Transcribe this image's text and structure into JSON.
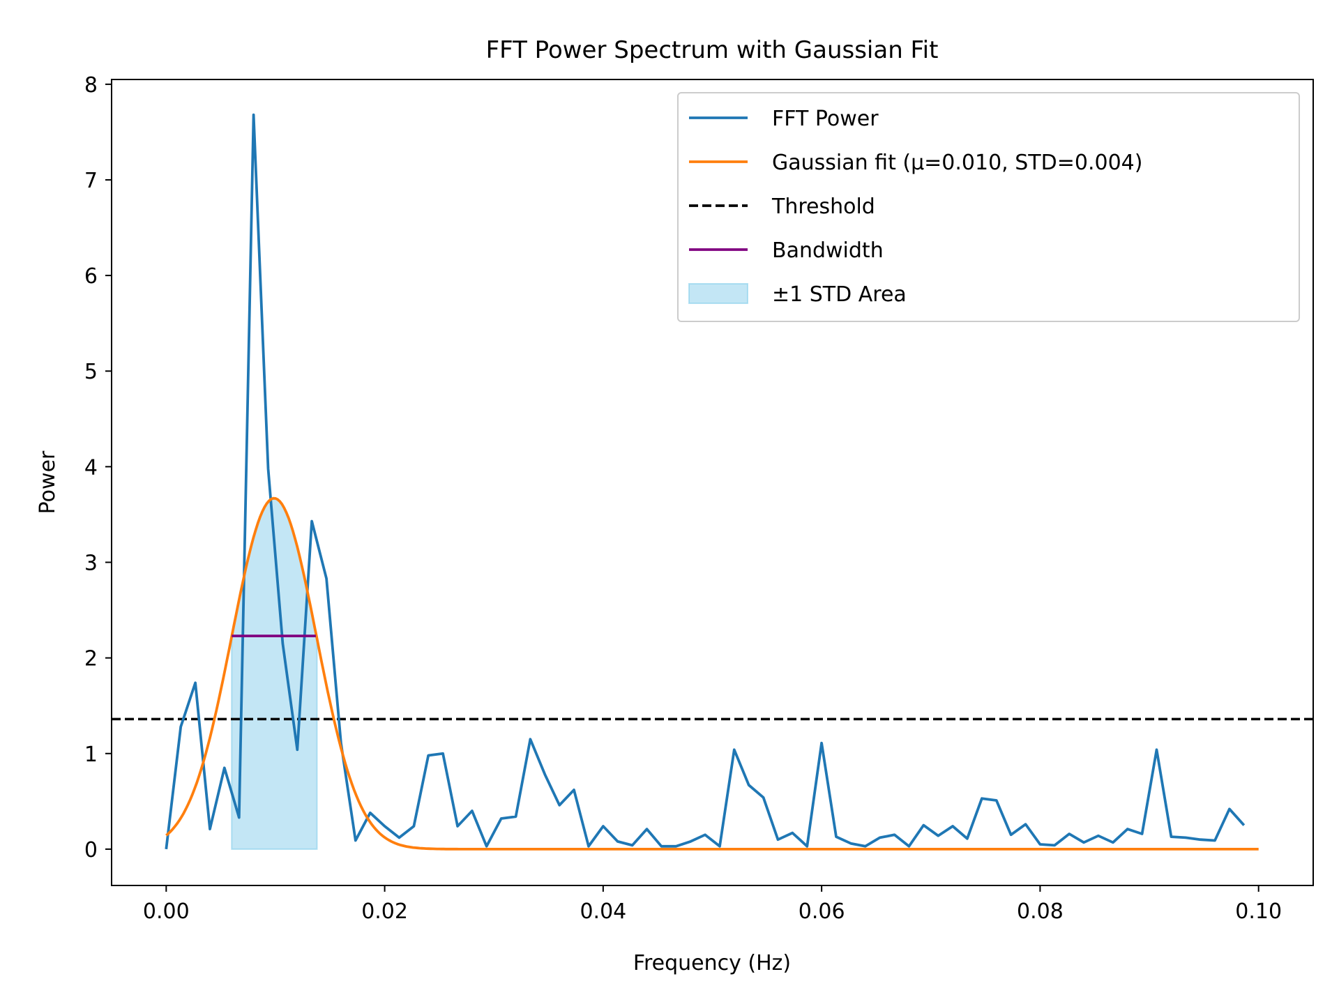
{
  "colors": {
    "fft": "#1f77b4",
    "gaussian": "#ff7f0e",
    "threshold": "#000000",
    "bandwidth": "#800080",
    "std_area_fill": "#87ceeb"
  },
  "chart_data": {
    "type": "line",
    "title": "FFT Power Spectrum with Gaussian Fit",
    "xlabel": "Frequency (Hz)",
    "ylabel": "Power",
    "xlim": [
      -0.005,
      0.105
    ],
    "ylim": [
      -0.38,
      8.05
    ],
    "xticks": [
      0.0,
      0.02,
      0.04,
      0.06,
      0.08,
      0.1
    ],
    "xtick_labels": [
      "0.00",
      "0.02",
      "0.04",
      "0.06",
      "0.08",
      "0.10"
    ],
    "yticks": [
      0,
      1,
      2,
      3,
      4,
      5,
      6,
      7,
      8
    ],
    "ytick_labels": [
      "0",
      "1",
      "2",
      "3",
      "4",
      "5",
      "6",
      "7",
      "8"
    ],
    "grid": false,
    "legend_position": "top-right",
    "legend": [
      {
        "label": "FFT Power",
        "kind": "line",
        "color": "#1f77b4"
      },
      {
        "label": "Gaussian fit (μ=0.010, STD=0.004)",
        "kind": "line",
        "color": "#ff7f0e"
      },
      {
        "label": "Threshold",
        "kind": "dashed",
        "color": "#000000"
      },
      {
        "label": "Bandwidth",
        "kind": "line",
        "color": "#800080"
      },
      {
        "label": "±1 STD Area",
        "kind": "area",
        "color": "#87ceeb"
      }
    ],
    "fft_power": {
      "x": [
        0.0,
        0.00133,
        0.00267,
        0.004,
        0.00533,
        0.00667,
        0.008,
        0.00933,
        0.01067,
        0.012,
        0.01333,
        0.01467,
        0.016,
        0.01733,
        0.01867,
        0.02,
        0.02133,
        0.02267,
        0.024,
        0.02533,
        0.02667,
        0.028,
        0.02933,
        0.03067,
        0.032,
        0.03333,
        0.03467,
        0.036,
        0.03733,
        0.03867,
        0.04,
        0.04133,
        0.04267,
        0.044,
        0.04533,
        0.04667,
        0.048,
        0.04933,
        0.05067,
        0.052,
        0.05333,
        0.05467,
        0.056,
        0.05733,
        0.05867,
        0.06,
        0.06133,
        0.06267,
        0.064,
        0.06533,
        0.06667,
        0.068,
        0.06933,
        0.07067,
        0.072,
        0.07333,
        0.07467,
        0.076,
        0.07733,
        0.07867,
        0.08,
        0.08133,
        0.08267,
        0.084,
        0.08533,
        0.08667,
        0.088,
        0.08933,
        0.09067,
        0.092,
        0.09333,
        0.09467,
        0.096,
        0.09733,
        0.09867
      ],
      "y": [
        0.0,
        1.28,
        1.74,
        0.21,
        0.85,
        0.33,
        7.68,
        3.98,
        2.15,
        1.04,
        3.43,
        2.83,
        1.11,
        0.09,
        0.38,
        0.24,
        0.12,
        0.24,
        0.98,
        1.0,
        0.24,
        0.4,
        0.03,
        0.32,
        0.34,
        1.15,
        0.78,
        0.46,
        0.62,
        0.03,
        0.24,
        0.08,
        0.04,
        0.21,
        0.03,
        0.03,
        0.08,
        0.15,
        0.03,
        1.04,
        0.67,
        0.54,
        0.1,
        0.17,
        0.03,
        1.11,
        0.13,
        0.06,
        0.03,
        0.12,
        0.15,
        0.03,
        0.25,
        0.14,
        0.24,
        0.11,
        0.53,
        0.51,
        0.15,
        0.26,
        0.05,
        0.04,
        0.16,
        0.07,
        0.14,
        0.07,
        0.21,
        0.16,
        1.04,
        0.13,
        0.12,
        0.1,
        0.09,
        0.42,
        0.25
      ]
    },
    "gaussian_fit": {
      "amplitude": 3.67,
      "mu": 0.00988,
      "std": 0.00388,
      "x_range": [
        0.0,
        0.1
      ]
    },
    "threshold": 1.36,
    "bandwidth": {
      "x_range": [
        0.006,
        0.0137
      ],
      "y": 2.23
    },
    "std_area": {
      "x_range": [
        0.006,
        0.0138
      ]
    }
  }
}
